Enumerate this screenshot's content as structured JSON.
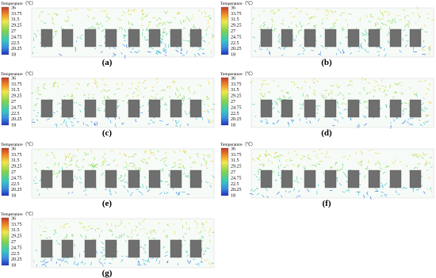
{
  "colorbar": {
    "title": "Temperature（℃）",
    "ticks": [
      "36",
      "33.75",
      "31.5",
      "29.25",
      "27",
      "24.75",
      "22.5",
      "20.25",
      "18"
    ]
  },
  "panels": [
    {
      "label": "(a)"
    },
    {
      "label": "(b)"
    },
    {
      "label": "(c)"
    },
    {
      "label": "(d)"
    },
    {
      "label": "(e)"
    },
    {
      "label": "(f)"
    },
    {
      "label": "(g)"
    }
  ]
}
